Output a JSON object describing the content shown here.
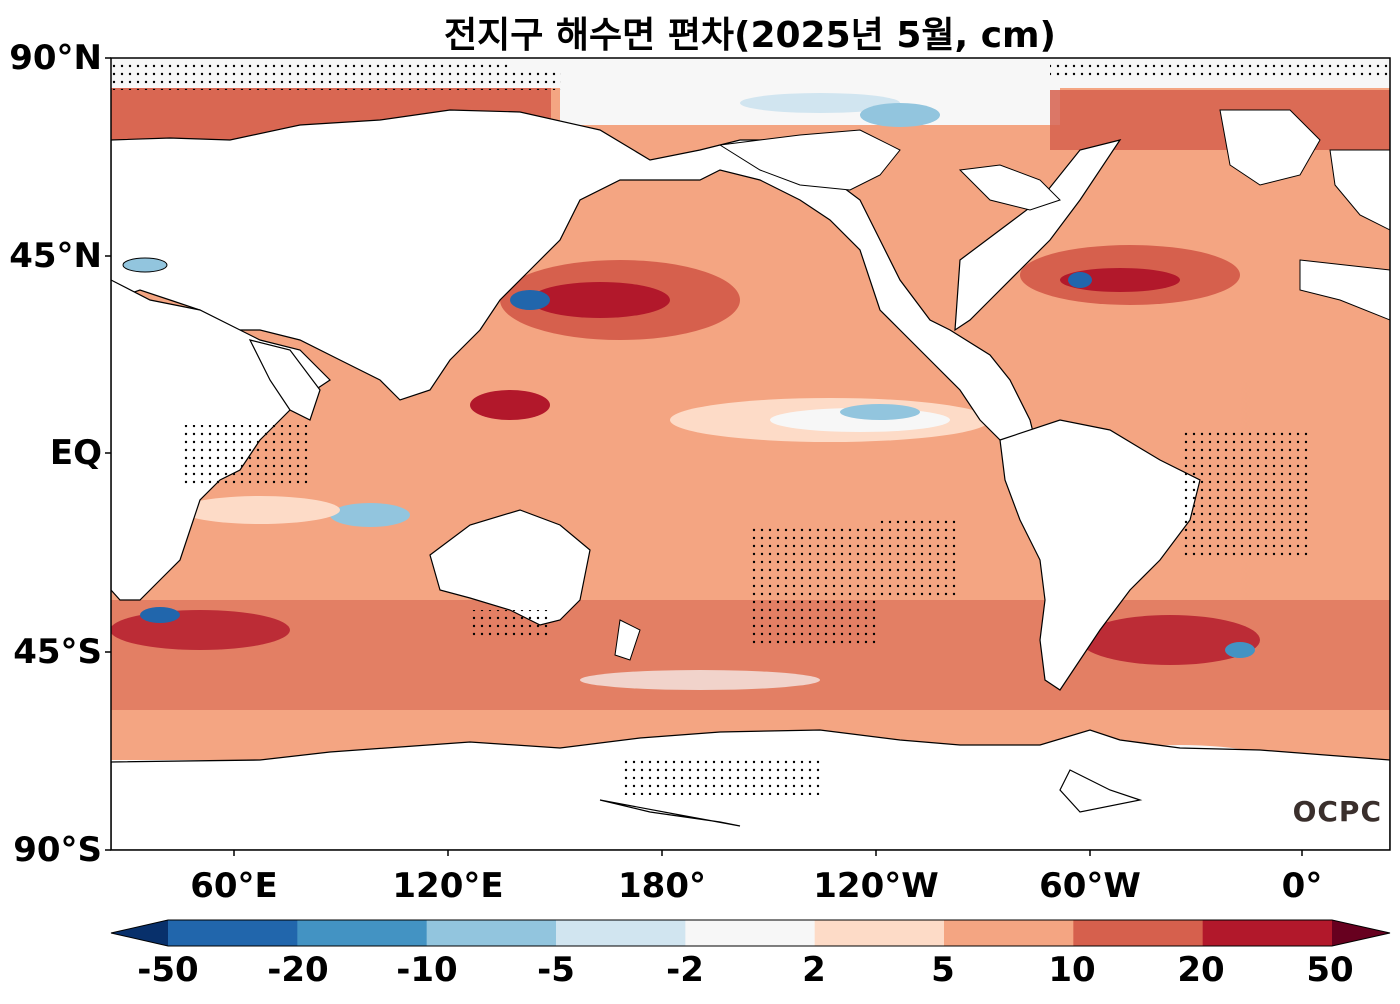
{
  "title": "전지구 해수면 편차(2025년 5월, cm)",
  "y_labels": [
    "90°N",
    "45°N",
    "EQ",
    "45°S",
    "90°S"
  ],
  "x_labels": [
    "60°E",
    "120°E",
    "180°",
    "120°W",
    "60°W",
    "0°"
  ],
  "colorbar": {
    "labels": [
      "-50",
      "-20",
      "-10",
      "-5",
      "-2",
      "2",
      "5",
      "10",
      "20",
      "50"
    ],
    "colors": [
      "#08306b",
      "#2166ac",
      "#4393c3",
      "#92c5de",
      "#d1e5f0",
      "#f7f7f7",
      "#fddbc7",
      "#f4a582",
      "#d6604d",
      "#b2182b",
      "#67001f"
    ],
    "extend": "both"
  },
  "logo": "OCPC"
}
